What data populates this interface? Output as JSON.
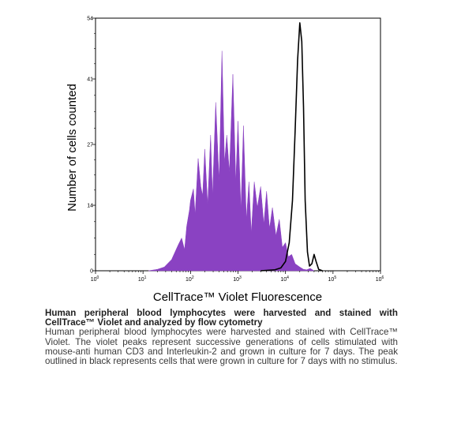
{
  "chart_data": {
    "type": "area",
    "xlabel": "CellTrace™ Violet Fluorescence",
    "ylabel": "Number of cells counted",
    "x_scale": "log",
    "xlim": [
      1,
      1000000
    ],
    "ylim": [
      0,
      54
    ],
    "x_ticks": [
      {
        "value": 1,
        "base": "10",
        "exp": "0"
      },
      {
        "value": 10,
        "base": "10",
        "exp": "1"
      },
      {
        "value": 100,
        "base": "10",
        "exp": "2"
      },
      {
        "value": 1000,
        "base": "10",
        "exp": "3"
      },
      {
        "value": 10000,
        "base": "10",
        "exp": "4"
      },
      {
        "value": 100000,
        "base": "10",
        "exp": "5"
      },
      {
        "value": 1000000,
        "base": "10",
        "exp": "6"
      }
    ],
    "y_ticks": [
      {
        "value": 0,
        "label": "0"
      },
      {
        "value": 14,
        "label": "14"
      },
      {
        "value": 27,
        "label": "27"
      },
      {
        "value": 41,
        "label": "41"
      },
      {
        "value": 54,
        "label": "54"
      }
    ],
    "series": [
      {
        "color": "#8a42c2",
        "style": "filled",
        "x": [
          13,
          20,
          28,
          40,
          55,
          65,
          75,
          83,
          95,
          100,
          115,
          125,
          145,
          165,
          180,
          200,
          230,
          265,
          290,
          340,
          400,
          460,
          520,
          580,
          660,
          780,
          900,
          1000,
          1150,
          1300,
          1500,
          1700,
          1900,
          2200,
          2550,
          3000,
          3500,
          4000,
          4600,
          5300,
          6300,
          7400,
          8600,
          10000,
          11500,
          13500,
          16000,
          20000,
          24000,
          28000,
          33000,
          40000
        ],
        "y": [
          0,
          0.3,
          0.8,
          2.4,
          5.5,
          7,
          4.5,
          9.5,
          13,
          15,
          17.5,
          12,
          24,
          18,
          16,
          26,
          14,
          29,
          16,
          36,
          19,
          47,
          23,
          29,
          21,
          42,
          19,
          32,
          13,
          31,
          11,
          19,
          8,
          19,
          13.5,
          18,
          10,
          17,
          9,
          13.5,
          7.5,
          11,
          5,
          6,
          3,
          3.5,
          1.5,
          0.8,
          0.3,
          0.2,
          0.5,
          0
        ]
      },
      {
        "color": "#000000",
        "style": "outline",
        "x": [
          3000,
          6000,
          8000,
          10000,
          12000,
          14000,
          16000,
          18000,
          20000,
          22000,
          24000,
          26000,
          29000,
          32000,
          36000,
          40000,
          44000,
          50000,
          60000
        ],
        "y": [
          0,
          0.2,
          0.6,
          2,
          6,
          15,
          30,
          45,
          53,
          49,
          35,
          15,
          4,
          1,
          1.5,
          3.5,
          2,
          0.3,
          0
        ]
      }
    ]
  },
  "caption": {
    "title": "Human peripheral blood lymphocytes were harvested and stained with CellTrace™ Violet and analyzed by flow cytometry",
    "body": "Human peripheral blood lymphocytes were harvested and stained with CellTrace™ Violet. The violet peaks represent successive generations of cells stimulated with mouse-anti human CD3 and Interleukin-2 and grown in culture for 7 days. The peak outlined in black represents cells that were grown in culture for 7 days with no stimulus."
  }
}
